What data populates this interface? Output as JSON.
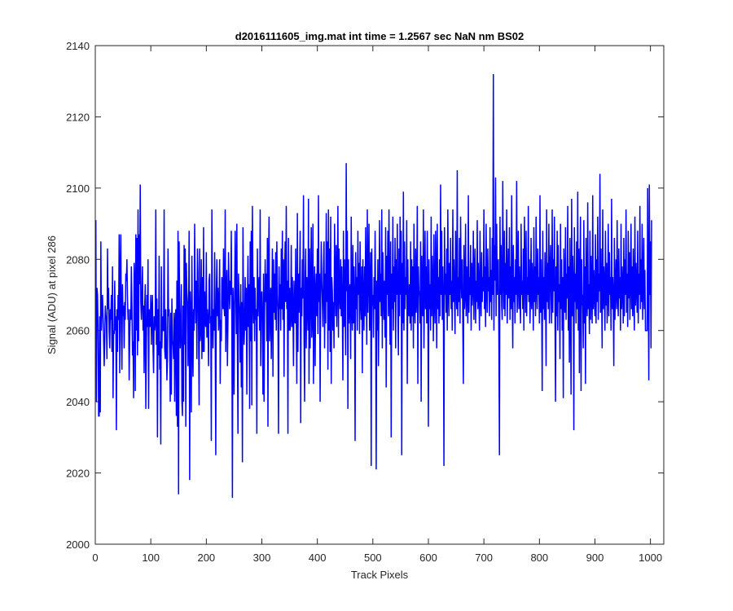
{
  "chart_data": {
    "type": "line",
    "title": "d2016111605_img.mat int time = 1.2567 sec  NaN nm BS02",
    "xlabel": "Track Pixels",
    "ylabel": "Signal (ADU) at pixel 286",
    "xlim": [
      0,
      1024
    ],
    "ylim": [
      2000,
      2140
    ],
    "xticks": [
      0,
      100,
      200,
      300,
      400,
      500,
      600,
      700,
      800,
      900,
      1000
    ],
    "yticks": [
      2000,
      2020,
      2040,
      2060,
      2080,
      2100,
      2120,
      2140
    ],
    "xtick_labels": [
      "0",
      "100",
      "200",
      "300",
      "400",
      "500",
      "600",
      "700",
      "800",
      "900",
      "1000"
    ],
    "ytick_labels": [
      "2000",
      "2020",
      "2040",
      "2060",
      "2080",
      "2100",
      "2120",
      "2140"
    ],
    "grid": false,
    "line_color": "#0000ff",
    "series": [
      {
        "x_start": 1,
        "x_step": 1,
        "values": [
          2091,
          2040,
          2072,
          2070,
          2060,
          2036,
          2036,
          2064,
          2037,
          2085,
          2060,
          2066,
          2070,
          2064,
          2058,
          2050,
          2057,
          2067,
          2064,
          2063,
          2052,
          2083,
          2066,
          2072,
          2060,
          2055,
          2066,
          2063,
          2070,
          2054,
          2078,
          2041,
          2060,
          2059,
          2074,
          2060,
          2064,
          2032,
          2066,
          2054,
          2070,
          2063,
          2087,
          2048,
          2075,
          2087,
          2060,
          2049,
          2073,
          2064,
          2067,
          2055,
          2068,
          2063,
          2076,
          2074,
          2080,
          2069,
          2063,
          2066,
          2046,
          2058,
          2066,
          2063,
          2078,
          2067,
          2053,
          2057,
          2041,
          2079,
          2073,
          2043,
          2087,
          2060,
          2086,
          2053,
          2094,
          2057,
          2087,
          2073,
          2101,
          2068,
          2063,
          2070,
          2078,
          2060,
          2067,
          2048,
          2067,
          2073,
          2038,
          2056,
          2070,
          2061,
          2080,
          2038,
          2066,
          2063,
          2061,
          2070,
          2056,
          2066,
          2070,
          2055,
          2048,
          2064,
          2060,
          2062,
          2094,
          2056,
          2069,
          2030,
          2066,
          2053,
          2081,
          2049,
          2057,
          2028,
          2078,
          2055,
          2064,
          2060,
          2060,
          2094,
          2055,
          2052,
          2066,
          2057,
          2046,
          2052,
          2083,
          2064,
          2066,
          2055,
          2040,
          2065,
          2042,
          2069,
          2057,
          2056,
          2052,
          2065,
          2040,
          2062,
          2066,
          2036,
          2074,
          2033,
          2088,
          2014,
          2085,
          2065,
          2055,
          2061,
          2073,
          2040,
          2036,
          2067,
          2040,
          2084,
          2056,
          2083,
          2033,
          2079,
          2071,
          2068,
          2050,
          2061,
          2088,
          2018,
          2071,
          2064,
          2037,
          2081,
          2056,
          2047,
          2066,
          2060,
          2090,
          2071,
          2062,
          2074,
          2052,
          2083,
          2076,
          2060,
          2039,
          2083,
          2057,
          2060,
          2080,
          2052,
          2075,
          2054,
          2089,
          2054,
          2071,
          2063,
          2061,
          2082,
          2058,
          2066,
          2062,
          2050,
          2074,
          2076,
          2062,
          2064,
          2029,
          2094,
          2066,
          2055,
          2066,
          2060,
          2082,
          2060,
          2025,
          2071,
          2080,
          2064,
          2072,
          2060,
          2065,
          2080,
          2045,
          2063,
          2057,
          2075,
          2071,
          2066,
          2083,
          2067,
          2064,
          2094,
          2054,
          2069,
          2077,
          2050,
          2063,
          2082,
          2072,
          2066,
          2074,
          2070,
          2088,
          2062,
          2013,
          2072,
          2066,
          2042,
          2070,
          2088,
          2073,
          2059,
          2090,
          2055,
          2031,
          2076,
          2068,
          2065,
          2051,
          2073,
          2044,
          2068,
          2023,
          2089,
          2067,
          2056,
          2062,
          2075,
          2060,
          2072,
          2042,
          2067,
          2081,
          2061,
          2073,
          2038,
          2085,
          2057,
          2088,
          2039,
          2095,
          2072,
          2062,
          2075,
          2057,
          2072,
          2063,
          2066,
          2031,
          2083,
          2064,
          2071,
          2075,
          2060,
          2094,
          2050,
          2068,
          2071,
          2063,
          2042,
          2076,
          2040,
          2065,
          2080,
          2068,
          2076,
          2057,
          2086,
          2033,
          2079,
          2092,
          2057,
          2064,
          2072,
          2052,
          2067,
          2083,
          2047,
          2080,
          2065,
          2076,
          2063,
          2082,
          2060,
          2085,
          2070,
          2065,
          2031,
          2078,
          2066,
          2073,
          2060,
          2083,
          2066,
          2088,
          2063,
          2080,
          2047,
          2076,
          2085,
          2068,
          2095,
          2066,
          2074,
          2031,
          2086,
          2060,
          2072,
          2060,
          2064,
          2084,
          2061,
          2075,
          2066,
          2050,
          2074,
          2064,
          2062,
          2083,
          2065,
          2045,
          2093,
          2054,
          2076,
          2065,
          2074,
          2088,
          2034,
          2072,
          2064,
          2080,
          2069,
          2098,
          2058,
          2040,
          2074,
          2083,
          2055,
          2075,
          2068,
          2060,
          2097,
          2045,
          2083,
          2055,
          2070,
          2089,
          2058,
          2064,
          2090,
          2045,
          2069,
          2078,
          2050,
          2071,
          2076,
          2064,
          2083,
          2059,
          2098,
          2068,
          2076,
          2040,
          2070,
          2085,
          2074,
          2068,
          2061,
          2077,
          2085,
          2055,
          2076,
          2062,
          2093,
          2068,
          2085,
          2049,
          2094,
          2060,
          2083,
          2054,
          2092,
          2045,
          2075,
          2071,
          2060,
          2068,
          2055,
          2090,
          2073,
          2064,
          2084,
          2061,
          2073,
          2095,
          2058,
          2083,
          2071,
          2066,
          2080,
          2064,
          2078,
          2066,
          2046,
          2088,
          2061,
          2080,
          2066,
          2053,
          2107,
          2071,
          2088,
          2038,
          2080,
          2062,
          2071,
          2073,
          2052,
          2092,
          2066,
          2060,
          2084,
          2062,
          2078,
          2068,
          2029,
          2082,
          2066,
          2075,
          2060,
          2088,
          2070,
          2079,
          2059,
          2085,
          2068,
          2063,
          2078,
          2048,
          2080,
          2068,
          2060,
          2078,
          2064,
          2089,
          2073,
          2056,
          2094,
          2065,
          2076,
          2090,
          2060,
          2070,
          2082,
          2022,
          2083,
          2067,
          2070,
          2058,
          2075,
          2066,
          2088,
          2067,
          2021,
          2074,
          2060,
          2080,
          2050,
          2066,
          2091,
          2068,
          2076,
          2064,
          2094,
          2055,
          2082,
          2071,
          2063,
          2074,
          2058,
          2089,
          2044,
          2081,
          2070,
          2088,
          2064,
          2094,
          2072,
          2056,
          2085,
          2030,
          2076,
          2066,
          2092,
          2060,
          2078,
          2068,
          2086,
          2055,
          2080,
          2070,
          2090,
          2066,
          2053,
          2083,
          2064,
          2092,
          2070,
          2088,
          2025,
          2079,
          2062,
          2099,
          2060,
          2085,
          2066,
          2075,
          2070,
          2091,
          2045,
          2080,
          2066,
          2064,
          2073,
          2062,
          2085,
          2060,
          2080,
          2064,
          2078,
          2055,
          2090,
          2067,
          2062,
          2083,
          2065,
          2070,
          2095,
          2045,
          2078,
          2070,
          2071,
          2062,
          2085,
          2040,
          2081,
          2067,
          2064,
          2094,
          2055,
          2073,
          2088,
          2066,
          2078,
          2062,
          2088,
          2070,
          2033,
          2080,
          2066,
          2073,
          2060,
          2092,
          2064,
          2081,
          2072,
          2057,
          2087,
          2068,
          2062,
          2088,
          2076,
          2055,
          2090,
          2066,
          2075,
          2062,
          2080,
          2064,
          2101,
          2070,
          2088,
          2063,
          2078,
          2068,
          2022,
          2089,
          2070,
          2076,
          2065,
          2083,
          2060,
          2094,
          2072,
          2064,
          2079,
          2070,
          2086,
          2066,
          2074,
          2060,
          2094,
          2068,
          2080,
          2070,
          2059,
          2088,
          2072,
          2066,
          2105,
          2064,
          2075,
          2068,
          2086,
          2062,
          2092,
          2075,
          2069,
          2080,
          2062,
          2045,
          2084,
          2066,
          2070,
          2090,
          2064,
          2078,
          2071,
          2062,
          2098,
          2065,
          2075,
          2070,
          2084,
          2060,
          2079,
          2067,
          2072,
          2088,
          2063,
          2076,
          2083,
          2062,
          2074,
          2068,
          2091,
          2066,
          2079,
          2072,
          2060,
          2088,
          2070,
          2064,
          2082,
          2068,
          2075,
          2071,
          2094,
          2066,
          2078,
          2061,
          2090,
          2072,
          2065,
          2083,
          2071,
          2075,
          2064,
          2089,
          2068,
          2077,
          2063,
          2086,
          2070,
          2132,
          2060,
          2084,
          2074,
          2103,
          2064,
          2090,
          2070,
          2078,
          2080,
          2058,
          2025,
          2092,
          2070,
          2084,
          2067,
          2063,
          2102,
          2075,
          2066,
          2088,
          2064,
          2079,
          2070,
          2094,
          2062,
          2073,
          2083,
          2069,
          2089,
          2063,
          2078,
          2066,
          2098,
          2072,
          2055,
          2084,
          2068,
          2075,
          2062,
          2080,
          2070,
          2102,
          2065,
          2073,
          2088,
          2066,
          2078,
          2069,
          2062,
          2090,
          2070,
          2074,
          2066,
          2083,
          2060,
          2092,
          2076,
          2065,
          2088,
          2064,
          2075,
          2070,
          2095,
          2068,
          2080,
          2062,
          2071,
          2086,
          2066,
          2079,
          2073,
          2060,
          2089,
          2068,
          2078,
          2064,
          2092,
          2072,
          2066,
          2083,
          2070,
          2075,
          2062,
          2098,
          2065,
          2080,
          2069,
          2043,
          2088,
          2066,
          2075,
          2063,
          2082,
          2071,
          2050,
          2094,
          2068,
          2079,
          2066,
          2090,
          2062,
          2076,
          2084,
          2069,
          2062,
          2094,
          2065,
          2080,
          2071,
          2092,
          2066,
          2040,
          2078,
          2064,
          2088,
          2060,
          2084,
          2068,
          2073,
          2052,
          2090,
          2066,
          2080,
          2060,
          2075,
          2041,
          2083,
          2070,
          2065,
          2089,
          2063,
          2076,
          2069,
          2095,
          2060,
          2078,
          2051,
          2086,
          2070,
          2042,
          2097,
          2064,
          2081,
          2072,
          2032,
          2089,
          2068,
          2076,
          2062,
          2085,
          2066,
          2099,
          2060,
          2083,
          2048,
          2075,
          2092,
          2043,
          2080,
          2067,
          2070,
          2055,
          2091,
          2062,
          2078,
          2045,
          2086,
          2069,
          2064,
          2096,
          2066,
          2073,
          2059,
          2088,
          2063,
          2081,
          2070,
          2062,
          2098,
          2066,
          2077,
          2070,
          2064,
          2087,
          2062,
          2080,
          2068,
          2092,
          2063,
          2076,
          2071,
          2104,
          2065,
          2083,
          2070,
          2055,
          2094,
          2066,
          2078,
          2072,
          2060,
          2088,
          2067,
          2079,
          2062,
          2071,
          2090,
          2064,
          2082,
          2070,
          2075,
          2060,
          2097,
          2066,
          2075,
          2069,
          2050,
          2086,
          2063,
          2072,
          2080,
          2066,
          2091,
          2070,
          2064,
          2083,
          2069,
          2075,
          2060,
          2090,
          2066,
          2078,
          2072,
          2062,
          2086,
          2064,
          2080,
          2070,
          2094,
          2065,
          2076,
          2061,
          2088,
          2069,
          2082,
          2063,
          2075,
          2090,
          2066,
          2078,
          2064,
          2083,
          2070,
          2060,
          2092,
          2067,
          2079,
          2072,
          2065,
          2088,
          2062,
          2076,
          2070,
          2095,
          2066,
          2080,
          2068,
          2090,
          2063,
          2073,
          2086,
          2066,
          2077,
          2060,
          2060,
          2060,
          2060,
          2100,
          2075,
          2046,
          2101,
          2070,
          2085,
          2055,
          2091
        ]
      }
    ]
  }
}
